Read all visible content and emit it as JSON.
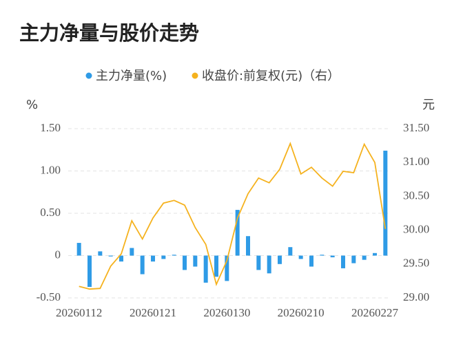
{
  "chart_data": {
    "type": "bar-line",
    "title": "主力净量与股价走势",
    "y_unit": "%",
    "y2_unit": "元",
    "categories": [
      "20260112",
      null,
      null,
      null,
      null,
      null,
      null,
      "20260121",
      null,
      null,
      null,
      null,
      null,
      null,
      "20260130",
      null,
      null,
      null,
      null,
      null,
      null,
      "20260210",
      null,
      null,
      null,
      null,
      null,
      null,
      "20260227",
      null
    ],
    "series": [
      {
        "name": "主力净量(%)",
        "type": "bar",
        "color": "#2f9be6",
        "values": [
          0.15,
          -0.37,
          0.05,
          -0.01,
          -0.07,
          0.09,
          -0.22,
          -0.07,
          -0.04,
          0.01,
          -0.17,
          -0.13,
          -0.32,
          -0.25,
          -0.3,
          0.54,
          0.23,
          -0.17,
          -0.21,
          -0.1,
          0.1,
          -0.04,
          -0.13,
          0.01,
          -0.02,
          -0.15,
          -0.09,
          -0.05,
          0.03,
          1.24
        ]
      },
      {
        "name": "收盘价:前复权(元)（右）",
        "type": "line",
        "axis": "y2",
        "color": "#f5b21e",
        "values": [
          29.17,
          29.13,
          29.14,
          29.47,
          29.65,
          30.14,
          29.87,
          30.18,
          30.4,
          30.44,
          30.37,
          30.04,
          29.79,
          29.2,
          29.55,
          30.18,
          30.54,
          30.77,
          30.7,
          30.9,
          31.28,
          30.83,
          30.93,
          30.77,
          30.65,
          30.87,
          30.85,
          31.27,
          31.0,
          30.02
        ]
      }
    ],
    "ylim": [
      -0.5,
      1.5
    ],
    "yticks": [
      {
        "value": -0.5,
        "label": "-0.50"
      },
      0,
      {
        "value": 0.5,
        "label": "0.50"
      },
      {
        "value": 1,
        "label": "1.00"
      },
      {
        "value": 1.5,
        "label": "1.50"
      }
    ],
    "y2lim": [
      29,
      31.5
    ],
    "y2ticks": [
      {
        "value": 29,
        "label": "29.00"
      },
      {
        "value": 29.5,
        "label": "29.50"
      },
      {
        "value": 30,
        "label": "30.00"
      },
      {
        "value": 30.5,
        "label": "30.50"
      },
      {
        "value": 31,
        "label": "31.00"
      },
      {
        "value": 31.5,
        "label": "31.50"
      }
    ],
    "grid": true
  }
}
